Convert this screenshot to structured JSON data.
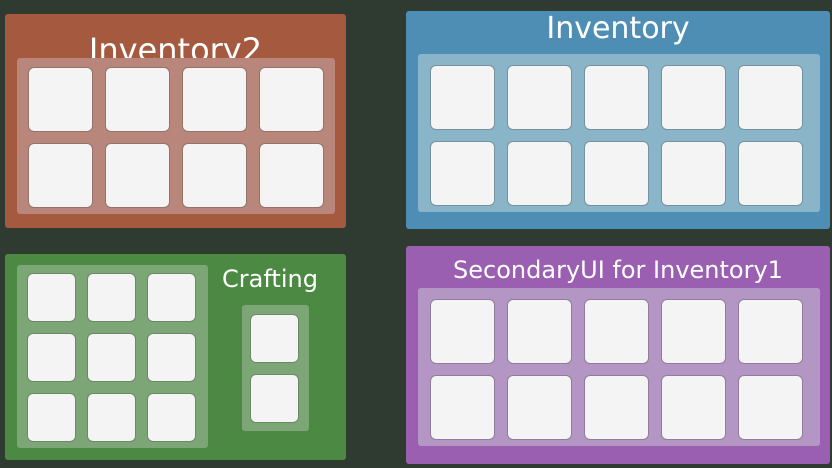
{
  "panels": {
    "inventory2": {
      "title": "Inventory2",
      "slot_count": 8,
      "color": "#a5593e"
    },
    "inventory": {
      "title": "Inventory",
      "slot_count": 10,
      "color": "#4f8eb4"
    },
    "crafting": {
      "title": "Crafting",
      "grid_slot_count": 9,
      "result_slot_count": 2,
      "color": "#4c8a44"
    },
    "secondary": {
      "title": "SecondaryUI for Inventory1",
      "slot_count": 10,
      "color": "#9a5fb0"
    }
  },
  "background_color": "#2f3b31"
}
